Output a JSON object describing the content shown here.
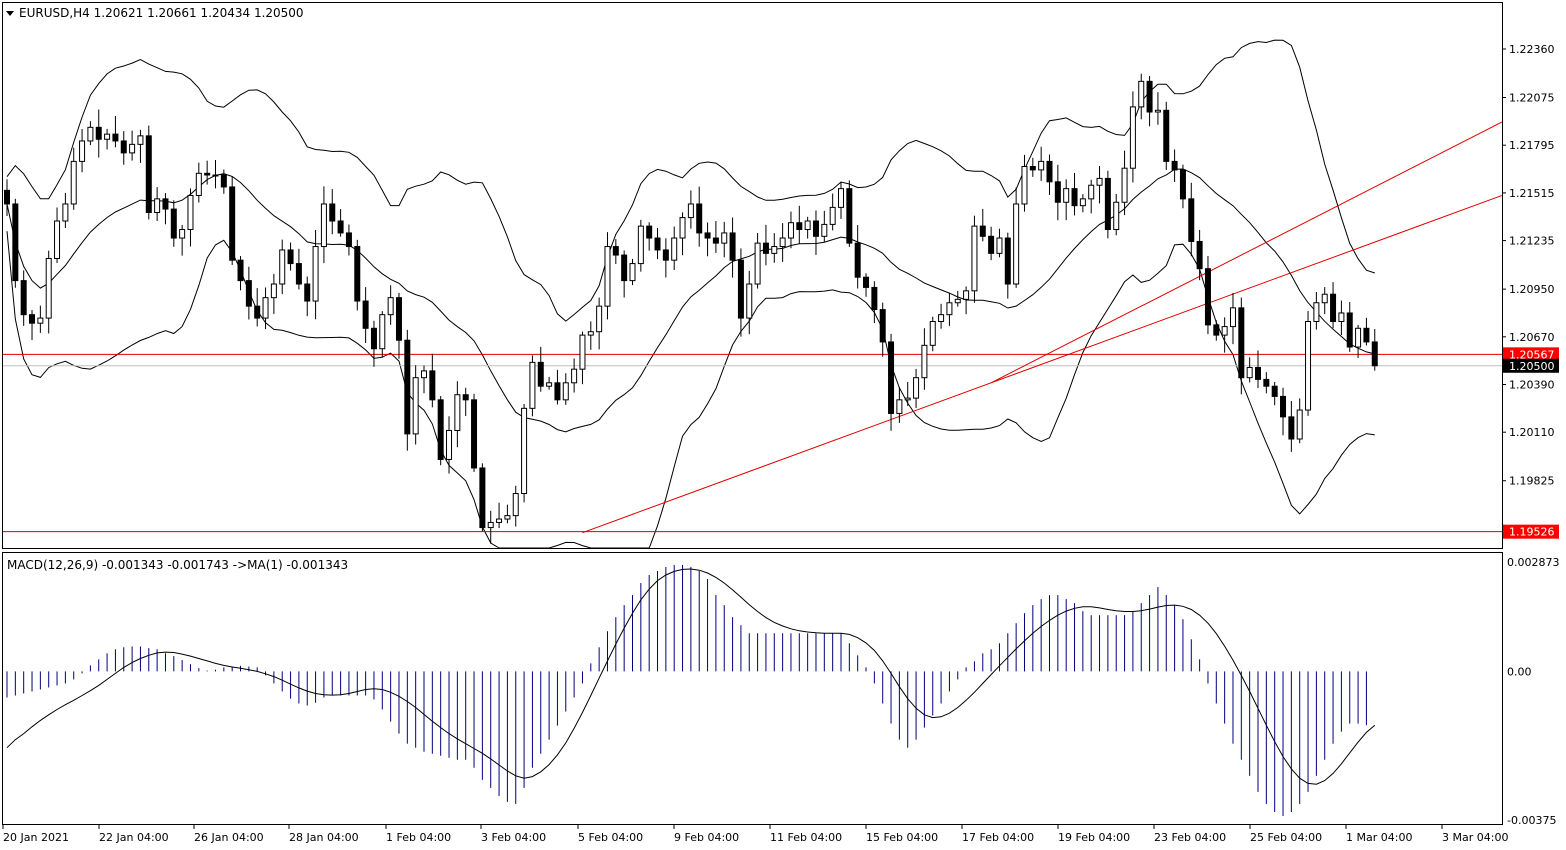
{
  "header": {
    "symbol_line": "EURUSD,H4  1.20621 1.20661 1.20434 1.20500",
    "macd_line": "MACD(12,26,9) -0.001343 -0.001743  ->MA(1) -0.001343"
  },
  "colors": {
    "background": "#ffffff",
    "candle_bear": "#000000",
    "candle_bull_body": "#ffffff",
    "trendline": "#e00000",
    "price_tag_red": "#ff0000",
    "price_tag_black": "#000000",
    "macd_hist": "#000080",
    "signal_line": "#000000"
  },
  "chart_data": [
    {
      "type": "candlestick",
      "name": "price",
      "y_ticks": [
        "1.22360",
        "1.22075",
        "1.21795",
        "1.21515",
        "1.21235",
        "1.20950",
        "1.20670",
        "1.20390",
        "1.20110",
        "1.19825"
      ],
      "y_range": [
        1.1943,
        1.2263
      ],
      "x_ticks": [
        "20 Jan 2021",
        "22 Jan 04:00",
        "26 Jan 04:00",
        "28 Jan 04:00",
        "1 Feb 04:00",
        "3 Feb 04:00",
        "5 Feb 04:00",
        "9 Feb 04:00",
        "11 Feb 04:00",
        "15 Feb 04:00",
        "17 Feb 04:00",
        "19 Feb 04:00",
        "23 Feb 04:00",
        "25 Feb 04:00",
        "1 Mar 04:00",
        "3 Mar 04:00"
      ],
      "current_price": "1.20500",
      "horizontal_levels": [
        "1.20567",
        "1.19526"
      ],
      "indicator": "Bollinger Bands",
      "closes": [
        1.2145,
        1.21,
        1.208,
        1.2075,
        1.2078,
        1.2113,
        1.2135,
        1.2145,
        1.217,
        1.2182,
        1.219,
        1.2183,
        1.2186,
        1.2182,
        1.2175,
        1.218,
        1.2185,
        1.214,
        1.2148,
        1.2142,
        1.2125,
        1.213,
        1.215,
        1.2163,
        1.2162,
        1.2162,
        1.2155,
        1.2112,
        1.21,
        1.2085,
        1.2078,
        1.209,
        1.2098,
        1.2118,
        1.211,
        1.2098,
        1.2088,
        1.212,
        1.2145,
        1.2135,
        1.2128,
        1.212,
        1.2088,
        1.2072,
        1.206,
        1.208,
        1.209,
        1.2065,
        1.201,
        1.2043,
        1.2047,
        1.203,
        1.1995,
        1.2012,
        1.2033,
        1.203,
        1.199,
        1.1955,
        1.1958,
        1.196,
        1.1962,
        1.1975,
        1.2025,
        1.2052,
        1.2038,
        1.204,
        1.203,
        1.204,
        1.2048,
        1.2068,
        1.207,
        1.2085,
        1.212,
        1.2115,
        1.21,
        1.211,
        1.2132,
        1.2125,
        1.2118,
        1.2112,
        1.2125,
        1.2137,
        1.2145,
        1.2128,
        1.2125,
        1.2122,
        1.2128,
        1.2112,
        1.2078,
        1.2098,
        1.2122,
        1.2116,
        1.212,
        1.2125,
        1.2134,
        1.213,
        1.2135,
        1.2126,
        1.2133,
        1.2143,
        1.2154,
        1.2122,
        1.2102,
        1.2096,
        1.2083,
        1.2064,
        1.2022,
        1.203,
        1.2031,
        1.2043,
        1.2062,
        1.2076,
        1.208,
        1.2087,
        1.2089,
        1.2094,
        1.2132,
        1.2126,
        1.2116,
        1.2125,
        1.2098,
        1.2145,
        1.2167,
        1.2165,
        1.217,
        1.2158,
        1.2146,
        1.2154,
        1.2144,
        1.2148,
        1.2156,
        1.216,
        1.213,
        1.2146,
        1.2166,
        1.2202,
        1.2217,
        1.2199,
        1.22,
        1.217,
        1.2165,
        1.2148,
        1.2123,
        1.2107,
        1.2074,
        1.2068,
        1.2073,
        1.2084,
        1.2043,
        1.2049,
        1.2042,
        1.2038,
        1.2032,
        1.202,
        1.2007,
        1.2024,
        1.2076,
        1.2087,
        1.2092,
        1.2076,
        1.2081,
        1.2061,
        1.2072,
        1.2064,
        1.205
      ]
    },
    {
      "type": "histogram",
      "name": "MACD",
      "y_ticks": [
        "0.002873",
        "0.00",
        "-0.00375"
      ],
      "y_range": [
        -0.00375,
        0.002873
      ],
      "values": [
        -0.00065,
        -0.0006,
        -0.00055,
        -0.0005,
        -0.00045,
        -0.0004,
        -0.00035,
        -0.0003,
        -0.0002,
        -5e-05,
        0.00015,
        0.0003,
        0.00045,
        0.00055,
        0.0006,
        0.00062,
        0.00062,
        0.00058,
        0.00055,
        0.00045,
        0.00038,
        0.00028,
        0.00018,
        8e-05,
        2e-05,
        4e-05,
        0.0001,
        0.00012,
        0.00014,
        0.00012,
        0.0001,
        -0.0001,
        -0.0003,
        -0.0005,
        -0.00068,
        -0.0008,
        -0.00085,
        -0.00078,
        -0.00065,
        -0.0006,
        -0.0006,
        -0.0006,
        -0.0006,
        -0.0006,
        -0.0007,
        -0.00095,
        -0.00125,
        -0.00155,
        -0.0018,
        -0.0019,
        -0.002,
        -0.00205,
        -0.0021,
        -0.00215,
        -0.0022,
        -0.0022,
        -0.0024,
        -0.0027,
        -0.0029,
        -0.0031,
        -0.00325,
        -0.0033,
        -0.0029,
        -0.0024,
        -0.00205,
        -0.0017,
        -0.00135,
        -0.001,
        -0.00065,
        -0.0003,
        0.0002,
        0.0006,
        0.001,
        0.00135,
        0.00165,
        0.0019,
        0.0022,
        0.0024,
        0.0025,
        0.0026,
        0.00265,
        0.00265,
        0.0026,
        0.0025,
        0.0023,
        0.0019,
        0.00165,
        0.00135,
        0.00115,
        0.00095,
        0.00095,
        0.00095,
        0.00095,
        0.00095,
        0.00095,
        0.00095,
        0.00095,
        0.00095,
        0.00095,
        0.00095,
        0.00095,
        0.0007,
        0.0004,
        0.0001,
        -0.0003,
        -0.0008,
        -0.0013,
        -0.0017,
        -0.0019,
        -0.0017,
        -0.0014,
        -0.0011,
        -0.0008,
        -0.0005,
        -0.0002,
        0.0001,
        0.00025,
        0.00045,
        0.00055,
        0.0007,
        0.00095,
        0.0012,
        0.00145,
        0.00165,
        0.0018,
        0.0019,
        0.0019,
        0.0018,
        0.0017,
        0.0015,
        0.0014,
        0.0014,
        0.0014,
        0.0014,
        0.0014,
        0.0015,
        0.0017,
        0.0019,
        0.0021,
        0.0019,
        0.00165,
        0.0013,
        0.0008,
        0.0003,
        -0.0003,
        -0.0008,
        -0.0013,
        -0.0018,
        -0.0022,
        -0.0026,
        -0.003,
        -0.0033,
        -0.0035,
        -0.0036,
        -0.0035,
        -0.0033,
        -0.003,
        -0.0026,
        -0.0022,
        -0.0018,
        -0.0015,
        -0.0013,
        -0.0013,
        -0.00134
      ],
      "signal_name": "MA(1)",
      "signal": [
        -0.0019,
        -0.0017,
        -0.00155,
        -0.00138,
        -0.00122,
        -0.00108,
        -0.00095,
        -0.00083,
        -0.00072,
        -0.0006,
        -0.00048,
        -0.00035,
        -0.0002,
        -5e-05,
        0.0001,
        0.00022,
        0.00032,
        0.0004,
        0.00046,
        0.00048,
        0.00047,
        0.00043,
        0.00038,
        0.00032,
        0.00026,
        0.0002,
        0.00015,
        0.00011,
        8e-05,
        4e-05,
        0.0,
        -6e-05,
        -0.00013,
        -0.00022,
        -0.00032,
        -0.00041,
        -0.00049,
        -0.00055,
        -0.00058,
        -0.00059,
        -0.00058,
        -0.00055,
        -0.0005,
        -0.00045,
        -0.00043,
        -0.00045,
        -0.00052,
        -0.00062,
        -0.00075,
        -0.0009,
        -0.00107,
        -0.00124,
        -0.0014,
        -0.00155,
        -0.00168,
        -0.0018,
        -0.00192,
        -0.00204,
        -0.00218,
        -0.00233,
        -0.00248,
        -0.0026,
        -0.00266,
        -0.00262,
        -0.0025,
        -0.00232,
        -0.00208,
        -0.00178,
        -0.00142,
        -0.00102,
        -0.0006,
        -0.00017,
        0.00026,
        0.00068,
        0.00108,
        0.00145,
        0.00178,
        0.00205,
        0.00226,
        0.0024,
        0.00249,
        0.00254,
        0.00255,
        0.00252,
        0.00245,
        0.00234,
        0.0022,
        0.00203,
        0.00185,
        0.00166,
        0.00149,
        0.00134,
        0.00122,
        0.00113,
        0.00106,
        0.00101,
        0.00098,
        0.00096,
        0.00095,
        0.00095,
        0.00095,
        0.00092,
        0.00084,
        0.00071,
        0.00052,
        0.00026,
        -5e-05,
        -0.00038,
        -0.00068,
        -0.00092,
        -0.00108,
        -0.00115,
        -0.00113,
        -0.00104,
        -0.0009,
        -0.00072,
        -0.00052,
        -0.0003,
        -8e-05,
        0.00014,
        0.00035,
        0.00056,
        0.00076,
        0.00095,
        0.00112,
        0.00127,
        0.0014,
        0.0015,
        0.00157,
        0.00161,
        0.00161,
        0.00158,
        0.00154,
        0.00151,
        0.00149,
        0.00149,
        0.00151,
        0.00155,
        0.0016,
        0.00164,
        0.00165,
        0.00162,
        0.00154,
        0.0014,
        0.0012,
        0.00094,
        0.00063,
        0.00028,
        -0.0001,
        -0.0005,
        -0.00092,
        -0.00134,
        -0.00175,
        -0.00212,
        -0.00243,
        -0.00266,
        -0.00279,
        -0.00281,
        -0.00272,
        -0.00254,
        -0.0023,
        -0.00203,
        -0.00176,
        -0.00152,
        -0.00134
      ]
    }
  ]
}
